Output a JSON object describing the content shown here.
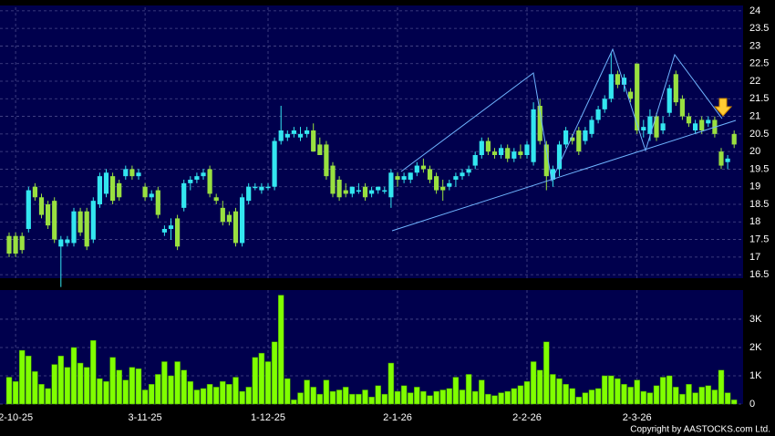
{
  "chart_data": [
    {
      "type": "candlestick",
      "up_color": "#33e6f0",
      "down_color": "#99e040",
      "grid": true,
      "ylim": [
        16.4,
        24.1
      ],
      "yticks": [
        16.5,
        17,
        17.5,
        18,
        18.5,
        19,
        19.5,
        20,
        20.5,
        21,
        21.5,
        22,
        22.5,
        23,
        23.5,
        24
      ],
      "open": [
        17.6,
        17.6,
        17.6,
        17.8,
        19.0,
        18.7,
        18.5,
        18.6,
        17.3,
        17.4,
        17.4,
        18.3,
        18.3,
        17.5,
        18.5,
        18.8,
        19.3,
        19.1,
        19.3,
        19.5,
        19.3,
        19.0,
        18.7,
        18.9,
        17.7,
        17.8,
        18.1,
        18.4,
        19.1,
        19.2,
        19.3,
        19.5,
        18.7,
        18.4,
        18.2,
        18.3,
        17.4,
        18.6,
        19.0,
        18.9,
        19.0,
        19.0,
        20.3,
        20.4,
        20.5,
        20.4,
        20.5,
        20.6,
        20.2,
        20.2,
        19.6,
        19.2,
        18.9,
        18.8,
        18.9,
        19.0,
        18.8,
        18.9,
        18.9,
        18.7,
        19.3,
        19.2,
        19.2,
        19.4,
        19.6,
        19.5,
        19.3,
        19.0,
        19.0,
        19.2,
        19.3,
        19.4,
        19.6,
        19.9,
        20.3,
        20.0,
        19.9,
        20.1,
        19.8,
        20.0,
        19.9,
        19.7,
        21.3,
        20.2,
        19.2,
        19.5,
        20.2,
        20.4,
        20.6,
        20.3,
        20.5,
        20.9,
        21.2,
        21.5,
        22.2,
        21.9,
        21.7,
        22.5,
        20.6,
        20.5,
        21.0,
        20.6,
        21.1,
        22.2,
        21.5,
        21.0,
        20.6,
        20.9,
        20.8,
        20.9,
        20.0,
        19.7,
        20.5
      ],
      "high": [
        17.7,
        17.7,
        17.7,
        19.0,
        19.1,
        18.8,
        18.6,
        18.7,
        17.6,
        17.6,
        18.4,
        18.4,
        18.4,
        18.7,
        19.4,
        19.5,
        19.4,
        19.2,
        19.6,
        19.6,
        19.5,
        19.1,
        18.9,
        19.0,
        17.9,
        18.1,
        18.2,
        19.2,
        19.3,
        19.4,
        19.5,
        19.6,
        18.8,
        18.6,
        18.3,
        18.4,
        18.8,
        19.1,
        19.1,
        19.1,
        19.1,
        20.4,
        21.3,
        20.6,
        20.7,
        20.7,
        20.7,
        20.8,
        20.4,
        20.3,
        19.7,
        19.3,
        19.1,
        19.0,
        19.1,
        19.1,
        19.0,
        19.0,
        19.0,
        19.5,
        19.4,
        19.4,
        19.4,
        19.7,
        19.8,
        19.6,
        19.4,
        19.2,
        19.2,
        19.4,
        19.5,
        19.6,
        20.0,
        20.4,
        20.4,
        20.1,
        20.2,
        20.2,
        20.1,
        20.2,
        20.3,
        21.4,
        21.5,
        20.3,
        19.6,
        20.3,
        20.7,
        20.5,
        20.7,
        20.7,
        21.0,
        21.3,
        21.6,
        22.8,
        22.3,
        22.2,
        21.8,
        22.5,
        20.9,
        21.2,
        21.1,
        21.0,
        21.9,
        22.3,
        21.6,
        21.1,
        20.9,
        21.0,
        21.0,
        21.0,
        20.1,
        19.9,
        20.6
      ],
      "low": [
        17.0,
        17.0,
        17.1,
        17.7,
        18.6,
        18.1,
        17.8,
        17.4,
        16.15,
        17.3,
        17.3,
        17.6,
        17.2,
        17.4,
        18.4,
        18.7,
        18.5,
        18.6,
        19.2,
        19.2,
        19.2,
        18.6,
        18.6,
        18.1,
        17.6,
        17.5,
        17.2,
        18.3,
        18.9,
        19.1,
        19.2,
        18.7,
        18.5,
        17.9,
        17.9,
        17.3,
        17.3,
        18.5,
        18.9,
        18.8,
        18.9,
        18.9,
        20.2,
        20.3,
        20.4,
        20.3,
        20.4,
        20.0,
        19.9,
        19.2,
        18.7,
        18.6,
        18.7,
        18.7,
        18.8,
        18.6,
        18.7,
        18.8,
        18.8,
        18.4,
        19.0,
        19.1,
        19.1,
        19.3,
        19.4,
        19.1,
        18.8,
        18.6,
        18.9,
        19.0,
        19.2,
        19.3,
        19.5,
        19.8,
        19.9,
        19.8,
        19.8,
        19.7,
        19.7,
        19.8,
        19.8,
        19.6,
        20.2,
        18.9,
        19.0,
        19.3,
        20.1,
        20.2,
        19.9,
        20.2,
        20.4,
        20.8,
        21.1,
        21.4,
        21.8,
        21.7,
        21.4,
        20.5,
        20.4,
        20.3,
        20.3,
        20.5,
        21.0,
        21.3,
        20.9,
        20.7,
        20.5,
        20.5,
        20.7,
        20.4,
        19.5,
        19.5,
        20.1
      ],
      "close": [
        17.1,
        17.1,
        17.2,
        18.9,
        18.7,
        18.2,
        17.9,
        17.5,
        17.5,
        17.5,
        18.3,
        17.7,
        17.3,
        18.6,
        19.3,
        19.4,
        18.6,
        18.7,
        19.5,
        19.3,
        19.4,
        18.7,
        18.8,
        18.2,
        17.8,
        17.9,
        17.3,
        19.1,
        19.2,
        19.3,
        19.4,
        18.8,
        18.6,
        18.0,
        18.0,
        17.4,
        18.7,
        19.0,
        19.0,
        19.0,
        19.0,
        20.3,
        20.6,
        20.5,
        20.6,
        20.5,
        20.6,
        20.0,
        19.9,
        19.3,
        18.8,
        18.7,
        18.8,
        19.0,
        18.9,
        18.7,
        18.9,
        19.0,
        18.9,
        19.4,
        19.2,
        19.3,
        19.4,
        19.6,
        19.5,
        19.2,
        18.9,
        18.9,
        19.1,
        19.3,
        19.4,
        19.5,
        19.9,
        20.3,
        20.0,
        19.9,
        20.1,
        19.8,
        20.0,
        19.9,
        20.2,
        21.2,
        20.3,
        19.3,
        19.5,
        20.2,
        20.6,
        20.3,
        20.0,
        20.6,
        20.9,
        21.2,
        21.5,
        22.2,
        21.9,
        22.1,
        21.5,
        20.6,
        20.7,
        21.0,
        20.4,
        20.8,
        21.8,
        21.4,
        21.0,
        20.8,
        20.8,
        20.6,
        20.9,
        20.5,
        19.6,
        19.8,
        20.2
      ]
    },
    {
      "type": "bar",
      "color": "#80ff00",
      "grid": true,
      "ylim": [
        0,
        4030
      ],
      "yticks": [
        0,
        {
          "value": 1000,
          "label": "1K"
        },
        {
          "value": 2000,
          "label": "2K"
        },
        {
          "value": 3000,
          "label": "3K"
        }
      ],
      "categories": [
        null,
        "2-10-25",
        null,
        null,
        null,
        null,
        null,
        null,
        null,
        null,
        null,
        null,
        null,
        null,
        null,
        null,
        null,
        null,
        null,
        null,
        null,
        "3-11-25",
        null,
        null,
        null,
        null,
        null,
        null,
        null,
        null,
        null,
        null,
        null,
        null,
        null,
        null,
        null,
        null,
        null,
        null,
        "1-12-25",
        null,
        null,
        null,
        null,
        null,
        null,
        null,
        null,
        null,
        null,
        null,
        null,
        null,
        null,
        null,
        null,
        null,
        null,
        null,
        "2-1-26",
        null,
        null,
        null,
        null,
        null,
        null,
        null,
        null,
        null,
        null,
        null,
        null,
        null,
        null,
        null,
        null,
        null,
        null,
        null,
        "2-2-26",
        null,
        null,
        null,
        null,
        null,
        null,
        null,
        null,
        null,
        null,
        null,
        null,
        null,
        null,
        null,
        null,
        "2-3-26",
        null,
        null,
        null,
        null,
        null,
        null,
        null,
        null,
        null,
        null,
        null,
        null,
        null,
        null,
        null
      ],
      "values": [
        950,
        800,
        1900,
        1700,
        1150,
        700,
        550,
        1400,
        1700,
        1300,
        2000,
        1450,
        1300,
        2250,
        900,
        800,
        1650,
        1200,
        850,
        1300,
        1250,
        500,
        700,
        1050,
        1500,
        1000,
        1500,
        1200,
        800,
        500,
        550,
        700,
        600,
        800,
        700,
        950,
        450,
        600,
        1650,
        1800,
        1500,
        2200,
        3850,
        900,
        150,
        400,
        850,
        600,
        350,
        850,
        450,
        500,
        600,
        350,
        350,
        500,
        250,
        650,
        350,
        1450,
        450,
        650,
        400,
        600,
        450,
        300,
        450,
        500,
        550,
        950,
        500,
        1050,
        450,
        850,
        350,
        300,
        400,
        450,
        550,
        650,
        800,
        1500,
        1200,
        2200,
        1050,
        900,
        700,
        550,
        250,
        400,
        500,
        550,
        1000,
        1000,
        900,
        700,
        600,
        850,
        450,
        400,
        650,
        950,
        1000,
        600,
        350,
        700,
        400,
        600,
        650,
        500,
        1200,
        400,
        150
      ]
    }
  ],
  "copyright": "Copyright by AASTOCKS.com Ltd."
}
